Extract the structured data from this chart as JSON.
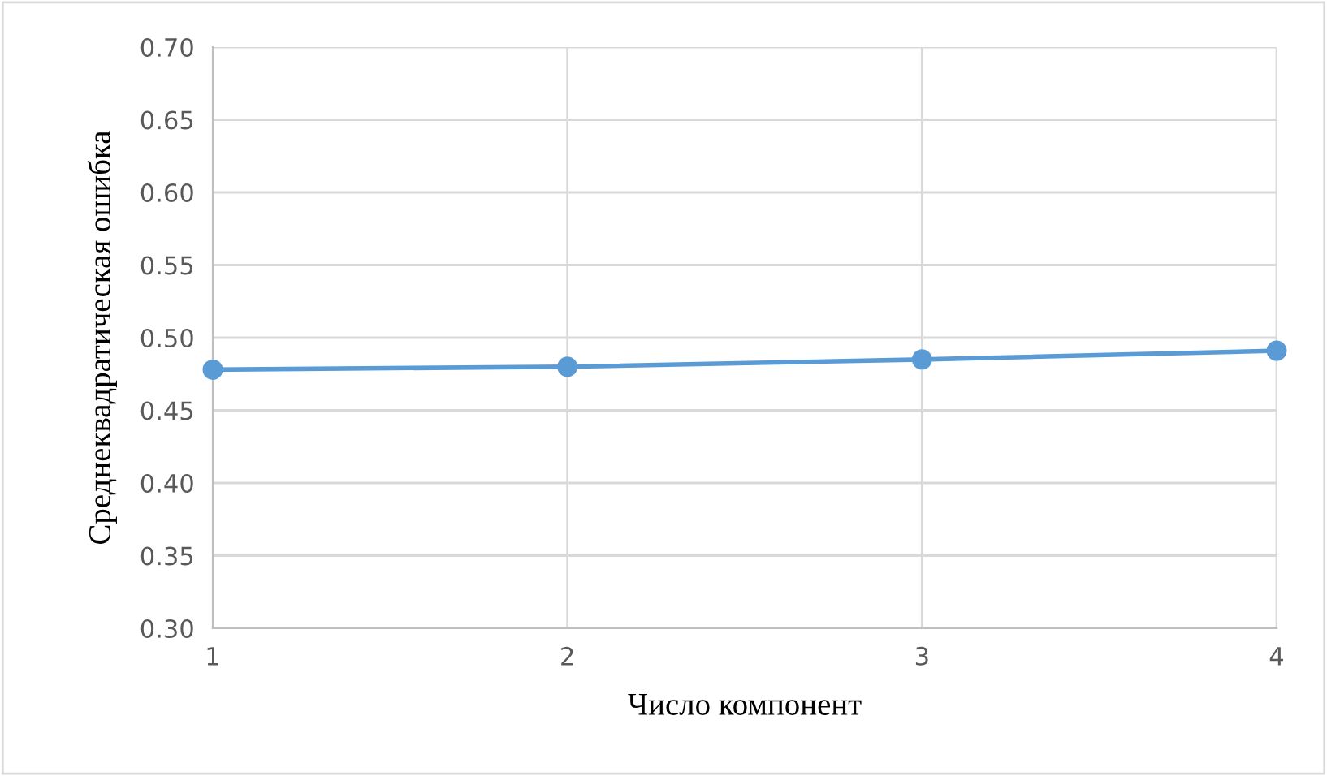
{
  "chart_data": {
    "type": "line",
    "xlabel": "Число компонент",
    "ylabel": "Среднеквадратическая ошибка",
    "x": [
      1,
      2,
      3,
      4
    ],
    "series": [
      {
        "color": "#5b9bd5",
        "values": [
          0.478,
          0.48,
          0.485,
          0.491
        ]
      }
    ],
    "xlim": [
      1,
      4
    ],
    "xticks": [
      1,
      2,
      3,
      4
    ],
    "ylim": [
      0.3,
      0.7
    ],
    "yticks": [
      {
        "value": 0.3,
        "label": "0.30"
      },
      {
        "value": 0.35,
        "label": "0.35"
      },
      {
        "value": 0.4,
        "label": "0.40"
      },
      {
        "value": 0.45,
        "label": "0.45"
      },
      {
        "value": 0.5,
        "label": "0.50"
      },
      {
        "value": 0.55,
        "label": "0.55"
      },
      {
        "value": 0.6,
        "label": "0.60"
      },
      {
        "value": 0.65,
        "label": "0.65"
      },
      {
        "value": 0.7,
        "label": "0.70"
      }
    ],
    "grid": true,
    "marker": "circle",
    "line_style": "solid",
    "legend": false
  }
}
